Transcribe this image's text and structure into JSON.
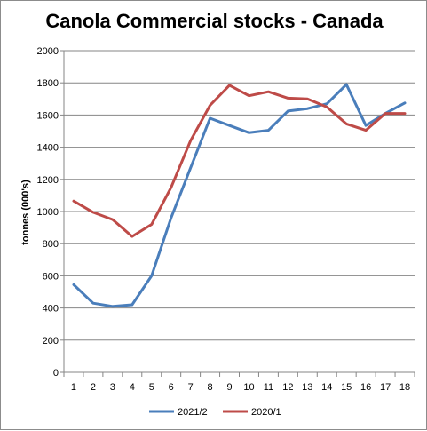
{
  "chart_data": {
    "type": "line",
    "title": "Canola Commercial stocks - Canada",
    "xlabel": "",
    "ylabel": "tonnes (000's)",
    "x": [
      1,
      2,
      3,
      4,
      5,
      6,
      7,
      8,
      9,
      10,
      11,
      12,
      13,
      14,
      15,
      16,
      17,
      18
    ],
    "ylim": [
      0,
      2000
    ],
    "yticks": [
      0,
      200,
      400,
      600,
      800,
      1000,
      1200,
      1400,
      1600,
      1800,
      2000
    ],
    "grid": true,
    "legend": "bottom",
    "series": [
      {
        "name": "2021/2",
        "color": "#4a7ebb",
        "values": [
          545,
          430,
          410,
          420,
          600,
          960,
          1270,
          1580,
          1535,
          1490,
          1505,
          1625,
          1640,
          1670,
          1790,
          1535,
          1610,
          1675
        ]
      },
      {
        "name": "2020/1",
        "color": "#be4b48",
        "values": [
          1065,
          995,
          950,
          845,
          920,
          1150,
          1440,
          1660,
          1785,
          1720,
          1745,
          1705,
          1700,
          1650,
          1545,
          1505,
          1610,
          1610
        ]
      }
    ]
  }
}
